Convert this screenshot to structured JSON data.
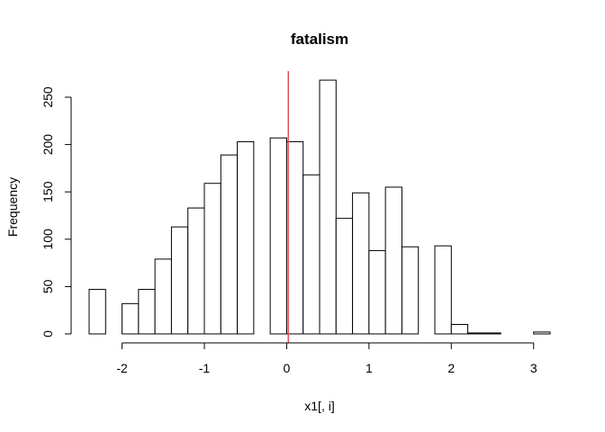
{
  "chart_data": {
    "type": "bar",
    "title": "fatalism",
    "xlabel": "x1[, i]",
    "ylabel": "Frequency",
    "xlim": [
      -2.4,
      3.2
    ],
    "ylim": [
      0,
      270
    ],
    "bin_width": 0.2,
    "bins": [
      {
        "start": -2.4,
        "end": -2.2,
        "count": 47
      },
      {
        "start": -2.2,
        "end": -2.0,
        "count": 0
      },
      {
        "start": -2.0,
        "end": -1.8,
        "count": 32
      },
      {
        "start": -1.8,
        "end": -1.6,
        "count": 47
      },
      {
        "start": -1.6,
        "end": -1.4,
        "count": 79
      },
      {
        "start": -1.4,
        "end": -1.2,
        "count": 113
      },
      {
        "start": -1.2,
        "end": -1.0,
        "count": 133
      },
      {
        "start": -1.0,
        "end": -0.8,
        "count": 159
      },
      {
        "start": -0.8,
        "end": -0.6,
        "count": 189
      },
      {
        "start": -0.6,
        "end": -0.4,
        "count": 203
      },
      {
        "start": -0.4,
        "end": -0.2,
        "count": 0
      },
      {
        "start": -0.2,
        "end": 0.0,
        "count": 207
      },
      {
        "start": 0.0,
        "end": 0.2,
        "count": 203
      },
      {
        "start": 0.2,
        "end": 0.4,
        "count": 168
      },
      {
        "start": 0.4,
        "end": 0.6,
        "count": 268
      },
      {
        "start": 0.6,
        "end": 0.8,
        "count": 122
      },
      {
        "start": 0.8,
        "end": 1.0,
        "count": 149
      },
      {
        "start": 1.0,
        "end": 1.2,
        "count": 88
      },
      {
        "start": 1.2,
        "end": 1.4,
        "count": 155
      },
      {
        "start": 1.4,
        "end": 1.6,
        "count": 92
      },
      {
        "start": 1.6,
        "end": 1.8,
        "count": 0
      },
      {
        "start": 1.8,
        "end": 2.0,
        "count": 93
      },
      {
        "start": 2.0,
        "end": 2.2,
        "count": 10
      },
      {
        "start": 2.2,
        "end": 2.4,
        "count": 1
      },
      {
        "start": 2.4,
        "end": 2.6,
        "count": 1
      },
      {
        "start": 2.6,
        "end": 2.8,
        "count": 0
      },
      {
        "start": 2.8,
        "end": 3.0,
        "count": 0
      },
      {
        "start": 3.0,
        "end": 3.2,
        "count": 2
      }
    ],
    "x_ticks": [
      {
        "value": -2,
        "label": "-2"
      },
      {
        "value": -1,
        "label": "-1"
      },
      {
        "value": 0,
        "label": "0"
      },
      {
        "value": 1,
        "label": "1"
      },
      {
        "value": 2,
        "label": "2"
      },
      {
        "value": 3,
        "label": "3"
      }
    ],
    "y_ticks": [
      {
        "value": 0,
        "label": "0"
      },
      {
        "value": 50,
        "label": "50"
      },
      {
        "value": 100,
        "label": "100"
      },
      {
        "value": 150,
        "label": "150"
      },
      {
        "value": 200,
        "label": "200"
      },
      {
        "value": 250,
        "label": "250"
      }
    ],
    "reference_line": {
      "x": 0.02,
      "color": "#e0505a"
    },
    "grid": false,
    "legend": "none"
  }
}
